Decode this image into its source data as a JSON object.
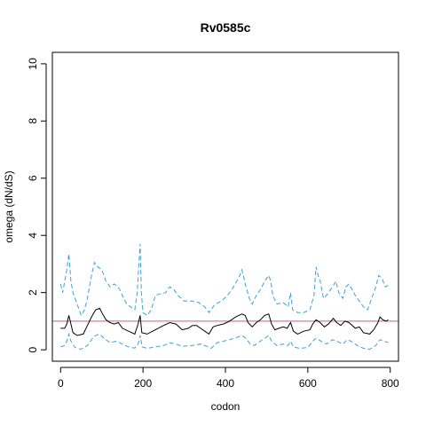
{
  "chart_data": {
    "type": "line",
    "title": "Rv0585c",
    "xlabel": "codon",
    "ylabel": "omega (dN/dS)",
    "xlim": [
      -20,
      820
    ],
    "ylim": [
      -0.4,
      10.4
    ],
    "xticks": [
      0,
      200,
      400,
      600,
      800
    ],
    "yticks": [
      0,
      2,
      4,
      6,
      8,
      10
    ],
    "reference_line": {
      "y": 1,
      "color": "#d8568f"
    },
    "series": [
      {
        "style": "solid",
        "color": "#000000",
        "points": [
          [
            0,
            0.75
          ],
          [
            10,
            0.75
          ],
          [
            15,
            0.9
          ],
          [
            20,
            1.2
          ],
          [
            25,
            0.9
          ],
          [
            30,
            0.6
          ],
          [
            40,
            0.5
          ],
          [
            55,
            0.55
          ],
          [
            65,
            0.85
          ],
          [
            75,
            1.15
          ],
          [
            85,
            1.4
          ],
          [
            95,
            1.45
          ],
          [
            100,
            1.3
          ],
          [
            110,
            1.05
          ],
          [
            120,
            0.95
          ],
          [
            130,
            0.9
          ],
          [
            140,
            0.95
          ],
          [
            150,
            0.75
          ],
          [
            165,
            0.65
          ],
          [
            180,
            0.55
          ],
          [
            188,
            0.9
          ],
          [
            193,
            1.2
          ],
          [
            197,
            0.6
          ],
          [
            210,
            0.55
          ],
          [
            230,
            0.7
          ],
          [
            250,
            0.85
          ],
          [
            265,
            0.95
          ],
          [
            280,
            0.9
          ],
          [
            295,
            0.7
          ],
          [
            310,
            0.75
          ],
          [
            320,
            0.85
          ],
          [
            330,
            0.85
          ],
          [
            340,
            0.75
          ],
          [
            350,
            0.65
          ],
          [
            360,
            0.55
          ],
          [
            370,
            0.8
          ],
          [
            380,
            0.85
          ],
          [
            395,
            0.9
          ],
          [
            410,
            1.0
          ],
          [
            425,
            1.15
          ],
          [
            440,
            1.25
          ],
          [
            448,
            1.2
          ],
          [
            455,
            0.95
          ],
          [
            465,
            0.8
          ],
          [
            475,
            0.95
          ],
          [
            485,
            1.05
          ],
          [
            495,
            1.2
          ],
          [
            505,
            1.25
          ],
          [
            512,
            0.9
          ],
          [
            520,
            0.7
          ],
          [
            530,
            0.75
          ],
          [
            540,
            0.8
          ],
          [
            550,
            0.75
          ],
          [
            558,
            0.95
          ],
          [
            565,
            0.65
          ],
          [
            575,
            0.55
          ],
          [
            590,
            0.65
          ],
          [
            605,
            0.7
          ],
          [
            612,
            0.9
          ],
          [
            620,
            1.05
          ],
          [
            630,
            0.95
          ],
          [
            640,
            0.8
          ],
          [
            650,
            0.9
          ],
          [
            662,
            1.1
          ],
          [
            670,
            0.95
          ],
          [
            680,
            0.85
          ],
          [
            690,
            1.0
          ],
          [
            700,
            0.95
          ],
          [
            715,
            0.75
          ],
          [
            725,
            0.8
          ],
          [
            735,
            0.6
          ],
          [
            750,
            0.55
          ],
          [
            760,
            0.7
          ],
          [
            770,
            0.95
          ],
          [
            775,
            1.15
          ],
          [
            782,
            1.05
          ],
          [
            790,
            1.0
          ],
          [
            795,
            1.05
          ]
        ]
      },
      {
        "style": "dashed",
        "color": "#3aa0e0",
        "points": [
          [
            0,
            2.3
          ],
          [
            5,
            2.0
          ],
          [
            10,
            2.4
          ],
          [
            15,
            2.8
          ],
          [
            20,
            3.35
          ],
          [
            25,
            2.4
          ],
          [
            30,
            2.0
          ],
          [
            40,
            1.6
          ],
          [
            50,
            1.2
          ],
          [
            58,
            1.4
          ],
          [
            65,
            1.8
          ],
          [
            75,
            2.6
          ],
          [
            82,
            3.05
          ],
          [
            90,
            2.9
          ],
          [
            100,
            2.8
          ],
          [
            110,
            2.4
          ],
          [
            120,
            2.2
          ],
          [
            130,
            2.3
          ],
          [
            140,
            2.2
          ],
          [
            150,
            1.9
          ],
          [
            160,
            1.6
          ],
          [
            170,
            1.5
          ],
          [
            180,
            1.4
          ],
          [
            186,
            2.0
          ],
          [
            190,
            3.0
          ],
          [
            193,
            3.7
          ],
          [
            196,
            2.0
          ],
          [
            200,
            1.3
          ],
          [
            210,
            1.2
          ],
          [
            220,
            1.4
          ],
          [
            230,
            1.9
          ],
          [
            240,
            1.95
          ],
          [
            255,
            2.0
          ],
          [
            265,
            2.2
          ],
          [
            275,
            2.1
          ],
          [
            285,
            1.9
          ],
          [
            300,
            1.7
          ],
          [
            320,
            1.7
          ],
          [
            335,
            1.65
          ],
          [
            350,
            1.5
          ],
          [
            360,
            1.3
          ],
          [
            375,
            1.6
          ],
          [
            390,
            1.7
          ],
          [
            405,
            1.9
          ],
          [
            420,
            2.2
          ],
          [
            435,
            2.6
          ],
          [
            440,
            2.8
          ],
          [
            450,
            2.2
          ],
          [
            458,
            1.8
          ],
          [
            465,
            1.6
          ],
          [
            475,
            1.9
          ],
          [
            485,
            2.1
          ],
          [
            495,
            2.4
          ],
          [
            505,
            2.6
          ],
          [
            510,
            2.4
          ],
          [
            515,
            1.9
          ],
          [
            525,
            1.6
          ],
          [
            540,
            1.65
          ],
          [
            552,
            1.5
          ],
          [
            558,
            2.0
          ],
          [
            563,
            1.4
          ],
          [
            575,
            1.3
          ],
          [
            590,
            1.3
          ],
          [
            605,
            1.4
          ],
          [
            615,
            1.9
          ],
          [
            620,
            2.9
          ],
          [
            625,
            2.6
          ],
          [
            630,
            2.4
          ],
          [
            638,
            1.8
          ],
          [
            648,
            1.95
          ],
          [
            660,
            2.2
          ],
          [
            668,
            2.4
          ],
          [
            675,
            2.0
          ],
          [
            685,
            1.8
          ],
          [
            692,
            2.2
          ],
          [
            700,
            2.3
          ],
          [
            708,
            2.1
          ],
          [
            715,
            1.9
          ],
          [
            725,
            1.7
          ],
          [
            735,
            1.5
          ],
          [
            745,
            1.4
          ],
          [
            755,
            1.8
          ],
          [
            765,
            2.2
          ],
          [
            772,
            2.6
          ],
          [
            780,
            2.5
          ],
          [
            788,
            2.2
          ],
          [
            795,
            2.25
          ]
        ]
      },
      {
        "style": "dashed",
        "color": "#3aa0e0",
        "points": [
          [
            0,
            0.1
          ],
          [
            10,
            0.15
          ],
          [
            15,
            0.3
          ],
          [
            20,
            0.55
          ],
          [
            25,
            0.3
          ],
          [
            35,
            0.08
          ],
          [
            50,
            0.02
          ],
          [
            65,
            0.15
          ],
          [
            75,
            0.35
          ],
          [
            85,
            0.5
          ],
          [
            95,
            0.55
          ],
          [
            105,
            0.4
          ],
          [
            120,
            0.25
          ],
          [
            135,
            0.3
          ],
          [
            150,
            0.2
          ],
          [
            165,
            0.1
          ],
          [
            180,
            0.06
          ],
          [
            188,
            0.2
          ],
          [
            193,
            0.5
          ],
          [
            198,
            0.1
          ],
          [
            210,
            0.05
          ],
          [
            230,
            0.1
          ],
          [
            250,
            0.15
          ],
          [
            265,
            0.25
          ],
          [
            280,
            0.2
          ],
          [
            295,
            0.12
          ],
          [
            320,
            0.15
          ],
          [
            340,
            0.2
          ],
          [
            355,
            0.12
          ],
          [
            365,
            0.05
          ],
          [
            380,
            0.25
          ],
          [
            395,
            0.3
          ],
          [
            410,
            0.35
          ],
          [
            425,
            0.42
          ],
          [
            440,
            0.5
          ],
          [
            450,
            0.4
          ],
          [
            460,
            0.2
          ],
          [
            470,
            0.15
          ],
          [
            485,
            0.3
          ],
          [
            495,
            0.4
          ],
          [
            505,
            0.5
          ],
          [
            512,
            0.3
          ],
          [
            525,
            0.15
          ],
          [
            540,
            0.2
          ],
          [
            552,
            0.15
          ],
          [
            558,
            0.3
          ],
          [
            565,
            0.1
          ],
          [
            580,
            0.05
          ],
          [
            600,
            0.08
          ],
          [
            612,
            0.3
          ],
          [
            620,
            0.4
          ],
          [
            632,
            0.3
          ],
          [
            645,
            0.2
          ],
          [
            660,
            0.35
          ],
          [
            670,
            0.3
          ],
          [
            685,
            0.2
          ],
          [
            695,
            0.35
          ],
          [
            705,
            0.3
          ],
          [
            720,
            0.15
          ],
          [
            735,
            0.05
          ],
          [
            750,
            0.02
          ],
          [
            765,
            0.15
          ],
          [
            775,
            0.35
          ],
          [
            785,
            0.3
          ],
          [
            795,
            0.25
          ]
        ]
      }
    ]
  }
}
